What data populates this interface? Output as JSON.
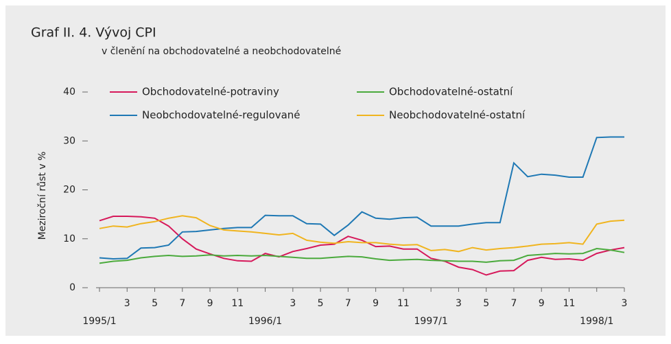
{
  "chart_data": {
    "type": "line",
    "title": "Graf II. 4. Vývoj CPI",
    "subtitle": "v členění na obchodovatelné a neobchodovatelné",
    "y_label": "Meziroční růst v %",
    "categories": [
      "1995/1",
      null,
      "3",
      null,
      "5",
      null,
      "7",
      null,
      "9",
      null,
      "11",
      null,
      "1996/1",
      null,
      "3",
      null,
      "5",
      null,
      "7",
      null,
      "9",
      null,
      "11",
      null,
      "1997/1",
      null,
      "3",
      null,
      "5",
      null,
      "7",
      null,
      "9",
      null,
      "11",
      null,
      "1998/1",
      null,
      "3"
    ],
    "ylim": [
      0,
      40
    ],
    "yticks": [
      0,
      10,
      20,
      30,
      40
    ],
    "series": [
      {
        "name": "Obchodovatelné-potraviny",
        "color": "#d6185a",
        "values": [
          13.7,
          14.6,
          14.6,
          14.5,
          14.2,
          12.6,
          10,
          7.9,
          6.9,
          6,
          5.5,
          5.4,
          7,
          6.3,
          7.4,
          8,
          8.7,
          8.9,
          10.5,
          9.7,
          8.4,
          8.5,
          7.9,
          7.9,
          6,
          5.4,
          4.2,
          3.7,
          2.6,
          3.4,
          3.5,
          5.6,
          6.2,
          5.8,
          5.9,
          5.6,
          7,
          7.7,
          8.2
        ]
      },
      {
        "name": "Obchodovatelné-ostatní",
        "color": "#4aaa3c",
        "values": [
          5,
          5.4,
          5.6,
          6.1,
          6.4,
          6.6,
          6.4,
          6.5,
          6.7,
          6.5,
          6.6,
          6.5,
          6.6,
          6.4,
          6.2,
          6,
          6,
          6.2,
          6.4,
          6.3,
          5.9,
          5.6,
          5.7,
          5.8,
          5.6,
          5.5,
          5.4,
          5.4,
          5.2,
          5.5,
          5.6,
          6.6,
          6.8,
          7,
          6.9,
          7,
          8,
          7.7,
          7.2
        ]
      },
      {
        "name": "Neobchodovatelné-regulované",
        "color": "#1e78b4",
        "values": [
          6.1,
          5.9,
          6,
          8.1,
          8.2,
          8.7,
          11.4,
          11.5,
          11.8,
          12.1,
          12.3,
          12.3,
          14.8,
          14.7,
          14.7,
          13.1,
          13,
          10.7,
          12.8,
          15.5,
          14.2,
          14,
          14.3,
          14.4,
          12.6,
          12.6,
          12.6,
          13,
          13.3,
          13.3,
          25.5,
          22.7,
          23.2,
          23,
          22.6,
          22.6,
          30.7,
          30.8,
          30.8
        ]
      },
      {
        "name": "Neobchodovatelné-ostatní",
        "color": "#f0b41e",
        "values": [
          12.1,
          12.6,
          12.4,
          13.1,
          13.5,
          14.2,
          14.7,
          14.3,
          12.7,
          11.8,
          11.6,
          11.4,
          11.1,
          10.8,
          11.1,
          9.7,
          9.3,
          9.1,
          9.4,
          9.2,
          9.2,
          8.9,
          8.7,
          8.8,
          7.6,
          7.8,
          7.4,
          8.2,
          7.7,
          8,
          8.2,
          8.5,
          8.9,
          9,
          9.2,
          8.9,
          13,
          13.6,
          13.8
        ]
      }
    ]
  }
}
